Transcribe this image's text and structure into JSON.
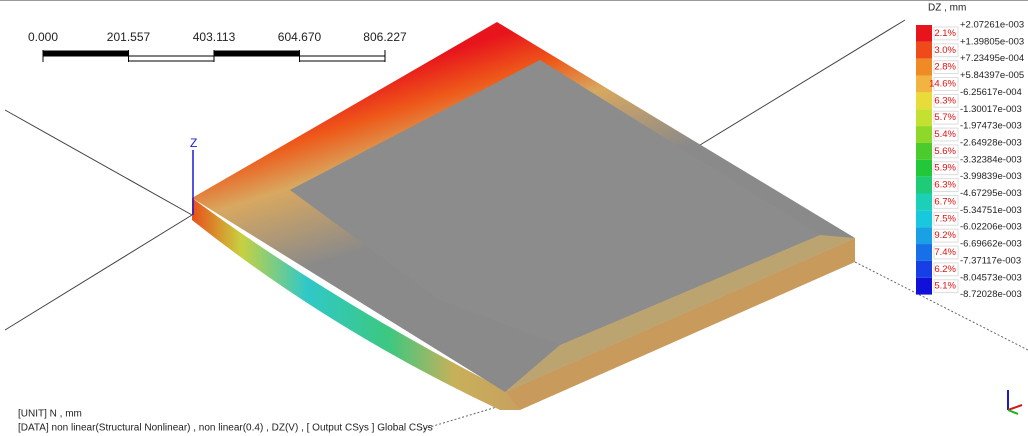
{
  "scale_bar": {
    "labels": [
      "0.000",
      "201.557",
      "403.113",
      "604.670",
      "806.227"
    ]
  },
  "axis_label": "Z",
  "legend": {
    "title": "DZ , mm",
    "values": [
      "+2.07261e-003",
      "+1.39805e-003",
      "+7.23495e-004",
      "+5.84397e-005",
      "-6.25617e-004",
      "-1.30017e-003",
      "-1.97473e-003",
      "-2.64928e-003",
      "-3.32384e-003",
      "-3.99839e-003",
      "-4.67295e-003",
      "-5.34751e-003",
      "-6.02206e-003",
      "-6.69662e-003",
      "-7.37117e-003",
      "-8.04573e-003",
      "-8.72028e-003"
    ],
    "bands": [
      {
        "percent": "2.1%",
        "color": "#e8141c"
      },
      {
        "percent": "3.0%",
        "color": "#ee4a1a"
      },
      {
        "percent": "2.8%",
        "color": "#f08a24"
      },
      {
        "percent": "14.6%",
        "color": "#f2b440"
      },
      {
        "percent": "6.3%",
        "color": "#e8dc3a"
      },
      {
        "percent": "5.7%",
        "color": "#c4e030"
      },
      {
        "percent": "5.4%",
        "color": "#8ed82a"
      },
      {
        "percent": "5.6%",
        "color": "#4ccc2c"
      },
      {
        "percent": "5.9%",
        "color": "#22c83a"
      },
      {
        "percent": "6.3%",
        "color": "#1ecc78"
      },
      {
        "percent": "6.7%",
        "color": "#1cd0b8"
      },
      {
        "percent": "7.5%",
        "color": "#18c8dc"
      },
      {
        "percent": "9.2%",
        "color": "#1aa0e4"
      },
      {
        "percent": "7.4%",
        "color": "#1870e8"
      },
      {
        "percent": "6.2%",
        "color": "#1640e6"
      },
      {
        "percent": "5.1%",
        "color": "#1010d8"
      }
    ]
  },
  "footer": {
    "unit": "[UNIT] N , mm",
    "data": "[DATA] non linear(Structural Nonlinear) , non linear(0.4) , DZ(V) , [ Output CSys ] Global CSys"
  }
}
